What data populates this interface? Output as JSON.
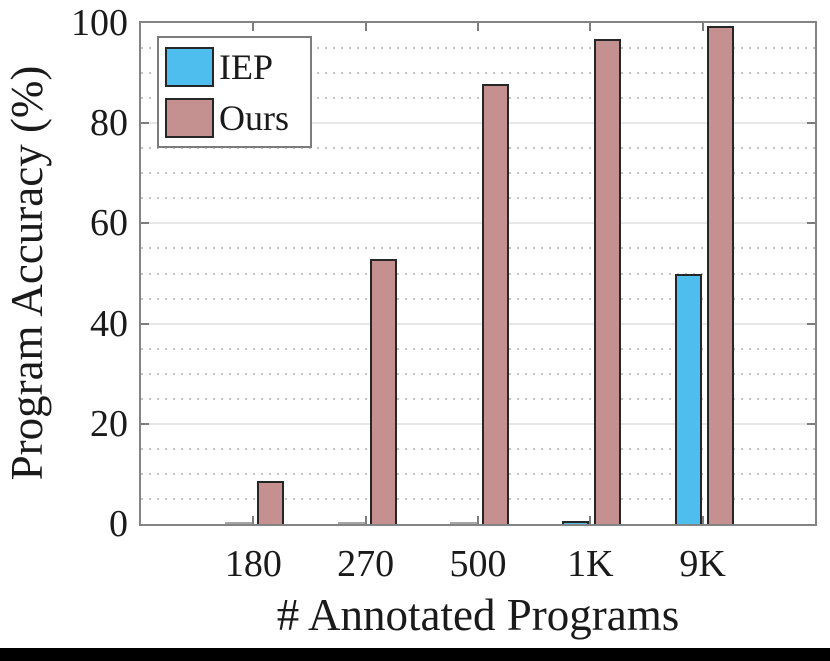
{
  "figure": {
    "background": "#ffffff",
    "bottom_strip_color": "#000000"
  },
  "chart_data": {
    "type": "bar",
    "title": "",
    "xlabel": "# Annotated Programs",
    "ylabel": "Program Accuracy (%)",
    "categories": [
      "180",
      "270",
      "500",
      "1K",
      "9K"
    ],
    "series": [
      {
        "name": "IEP",
        "color": "#4DBEEE",
        "values": [
          0,
          0,
          0,
          0.7,
          50
        ]
      },
      {
        "name": "Ours",
        "color": "#C49090",
        "values": [
          8.5,
          52.8,
          87.8,
          96.9,
          99.5
        ]
      }
    ],
    "ylim": [
      0,
      100
    ],
    "yticks": [
      0,
      20,
      40,
      60,
      80,
      100
    ],
    "minor_grid_step": 5,
    "grid": "horizontal: solid majors every 20, dotted minors every 5; no vertical grid",
    "legend_position": "top-left-inside",
    "bar_edge_color": "#262626",
    "axis_box_color": "#848484",
    "tick_color": "#7d7d7d",
    "text_color": "#1a1a1a"
  }
}
